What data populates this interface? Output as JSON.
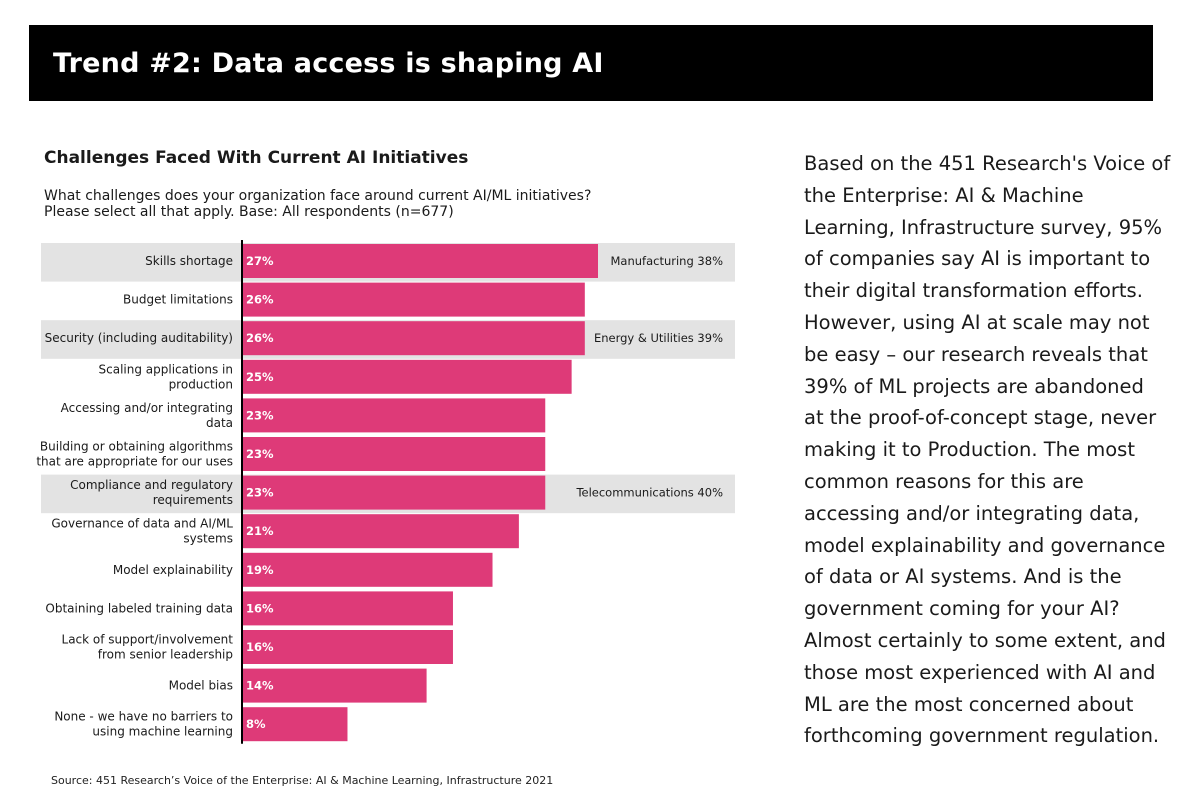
{
  "banner": {
    "title": "Trend #2: Data access is shaping AI"
  },
  "chart_data": {
    "type": "bar",
    "orientation": "horizontal",
    "title": "Challenges Faced With Current AI Initiatives",
    "question_lines": [
      "What challenges does your organization face around current AI/ML initiatives?",
      "Please select all that apply. Base: All respondents (n=677)"
    ],
    "categories": [
      [
        "Skills shortage"
      ],
      [
        "Budget limitations"
      ],
      [
        "Security (including auditability)"
      ],
      [
        "Scaling applications in",
        "production"
      ],
      [
        "Accessing and/or integrating",
        "data"
      ],
      [
        "Building or obtaining algorithms",
        "that are appropriate for our uses"
      ],
      [
        "Compliance and regulatory",
        "requirements"
      ],
      [
        "Governance of data and AI/ML",
        "systems"
      ],
      [
        "Model explainability"
      ],
      [
        "Obtaining labeled training data"
      ],
      [
        "Lack of support/involvement",
        "from senior leadership"
      ],
      [
        "Model bias"
      ],
      [
        "None - we have no barriers to",
        "using machine learning"
      ]
    ],
    "values": [
      27,
      26,
      26,
      25,
      23,
      23,
      23,
      21,
      19,
      16,
      16,
      14,
      8
    ],
    "value_labels": [
      "27%",
      "26%",
      "26%",
      "25%",
      "23%",
      "23%",
      "23%",
      "21%",
      "19%",
      "16%",
      "16%",
      "14%",
      "8%"
    ],
    "highlighted_rows": [
      0,
      2,
      6
    ],
    "callouts": [
      {
        "row": 0,
        "text": "Manufacturing 38%"
      },
      {
        "row": 2,
        "text": "Energy & Utilities 39%"
      },
      {
        "row": 6,
        "text": "Telecommunications 40%"
      }
    ],
    "xlim": [
      0,
      40
    ],
    "unit": "%",
    "colors": {
      "bar": "#de3a78",
      "highlight": "#e3e3e3",
      "axis": "#000000",
      "bar_label": "#ffffff"
    }
  },
  "source": "Source: 451 Research’s Voice of the Enterprise: AI & Machine Learning, Infrastructure 2021",
  "sidebar": {
    "lines": [
      "Based on the 451 Research's Voice of",
      "the Enterprise: AI & Machine",
      "Learning, Infrastructure survey, 95%",
      "of companies say AI is important to",
      "their digital transformation efforts.",
      "However, using AI at scale may not",
      "be easy – our research reveals that",
      "39% of ML projects are abandoned",
      "at the proof-of-concept stage, never",
      "making it to Production. The most",
      "common reasons for this are",
      "accessing and/or integrating data,",
      "model explainability and governance",
      "of data or AI systems. And is the",
      "government coming for your AI?",
      "Almost certainly to some extent, and",
      "those most experienced with AI and",
      "ML are the most concerned about",
      "forthcoming government regulation."
    ]
  }
}
